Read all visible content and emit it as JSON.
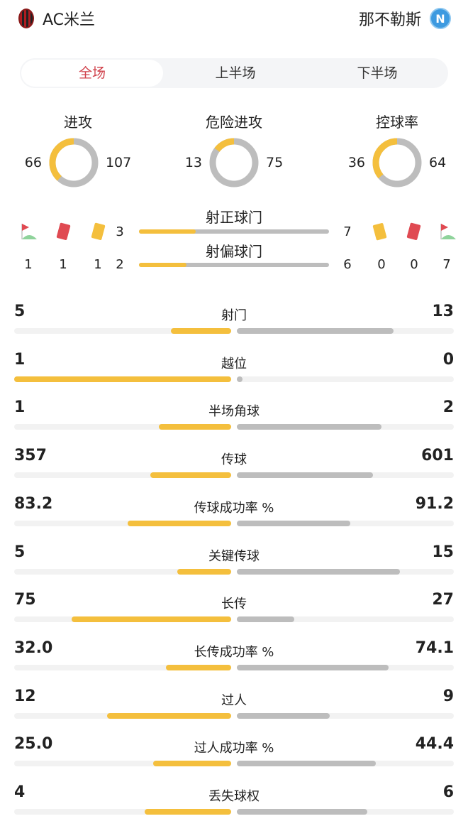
{
  "home": {
    "name": "AC米兰",
    "logo": "ac-milan-crest"
  },
  "away": {
    "name": "那不勒斯",
    "logo": "napoli-crest",
    "logo_letter": "N"
  },
  "tabs": [
    {
      "label": "全场",
      "active": true
    },
    {
      "label": "上半场"
    },
    {
      "label": "下半场"
    }
  ],
  "colors": {
    "home": "#f4bf3d",
    "away": "#bdbdbd",
    "active_tab": "#d0404a"
  },
  "donuts": [
    {
      "title": "进攻",
      "home": 66,
      "away": 107
    },
    {
      "title": "危险进攻",
      "home": 13,
      "away": 75
    },
    {
      "title": "控球率",
      "home": 36,
      "away": 64
    }
  ],
  "shots_on": {
    "label": "射正球门",
    "home": 3,
    "away": 7
  },
  "shots_off": {
    "label": "射偏球门",
    "home": 2,
    "away": 6
  },
  "home_counts": {
    "corners": 1,
    "red": 1,
    "yellow": 1
  },
  "away_counts": {
    "yellow": 0,
    "red": 0,
    "corners": 7
  },
  "stats": [
    {
      "label": "射门",
      "home": "5",
      "away": "13"
    },
    {
      "label": "越位",
      "home": "1",
      "away": "0"
    },
    {
      "label": "半场角球",
      "home": "1",
      "away": "2"
    },
    {
      "label": "传球",
      "home": "357",
      "away": "601"
    },
    {
      "label": "传球成功率 %",
      "home": "83.2",
      "away": "91.2"
    },
    {
      "label": "关键传球",
      "home": "5",
      "away": "15"
    },
    {
      "label": "长传",
      "home": "75",
      "away": "27"
    },
    {
      "label": "长传成功率 %",
      "home": "32.0",
      "away": "74.1"
    },
    {
      "label": "过人",
      "home": "12",
      "away": "9"
    },
    {
      "label": "过人成功率 %",
      "home": "25.0",
      "away": "44.4"
    },
    {
      "label": "丢失球权",
      "home": "4",
      "away": "6"
    }
  ]
}
